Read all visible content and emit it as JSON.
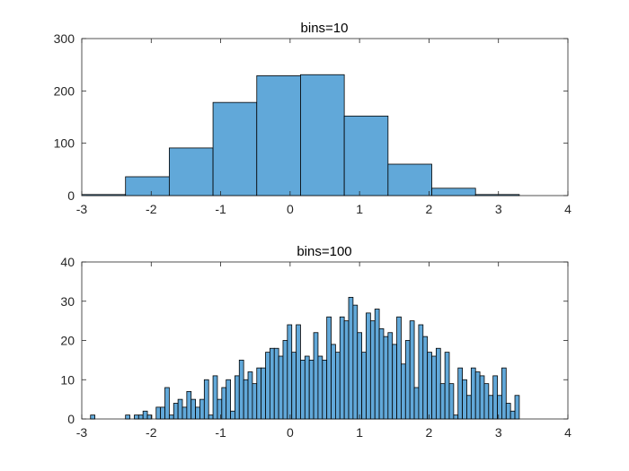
{
  "chart_data": [
    {
      "type": "bar",
      "title": "bins=10",
      "xlim": [
        -3,
        4
      ],
      "ylim": [
        0,
        300
      ],
      "xticks": [
        -3,
        -2,
        -1,
        0,
        1,
        2,
        3,
        4
      ],
      "yticks": [
        0,
        100,
        200,
        300
      ],
      "bar_color": "#61A8D9",
      "bin_edges": [
        -3.0,
        -2.37,
        -1.74,
        -1.11,
        -0.48,
        0.15,
        0.78,
        1.41,
        2.04,
        2.67,
        3.3
      ],
      "values": [
        2,
        36,
        91,
        178,
        229,
        231,
        152,
        60,
        14,
        2
      ]
    },
    {
      "type": "bar",
      "title": "bins=100",
      "xlim": [
        -3,
        4
      ],
      "ylim": [
        0,
        40
      ],
      "xticks": [
        -3,
        -2,
        -1,
        0,
        1,
        2,
        3,
        4
      ],
      "yticks": [
        0,
        10,
        20,
        30,
        40
      ],
      "bar_color": "#61A8D9",
      "bin_start": -3.0,
      "bin_width": 0.063,
      "values": [
        0,
        0,
        1,
        0,
        0,
        0,
        0,
        0,
        0,
        0,
        1,
        0,
        1,
        1,
        2,
        1,
        0,
        3,
        3,
        8,
        1,
        4,
        5,
        3,
        7,
        5,
        3,
        5,
        10,
        1,
        11,
        5,
        8,
        10,
        2,
        11,
        15,
        10,
        12,
        9,
        13,
        13,
        17,
        18,
        18,
        16,
        20,
        24,
        17,
        24,
        15,
        16,
        15,
        22,
        16,
        15,
        26,
        19,
        17,
        26,
        25,
        31,
        29,
        22,
        17,
        27,
        25,
        28,
        23,
        21,
        22,
        19,
        26,
        14,
        20,
        25,
        8,
        24,
        21,
        17,
        16,
        18,
        9,
        17,
        9,
        1,
        13,
        10,
        6,
        13,
        12,
        11,
        9,
        6,
        11,
        6,
        13,
        4,
        2,
        6
      ]
    }
  ]
}
